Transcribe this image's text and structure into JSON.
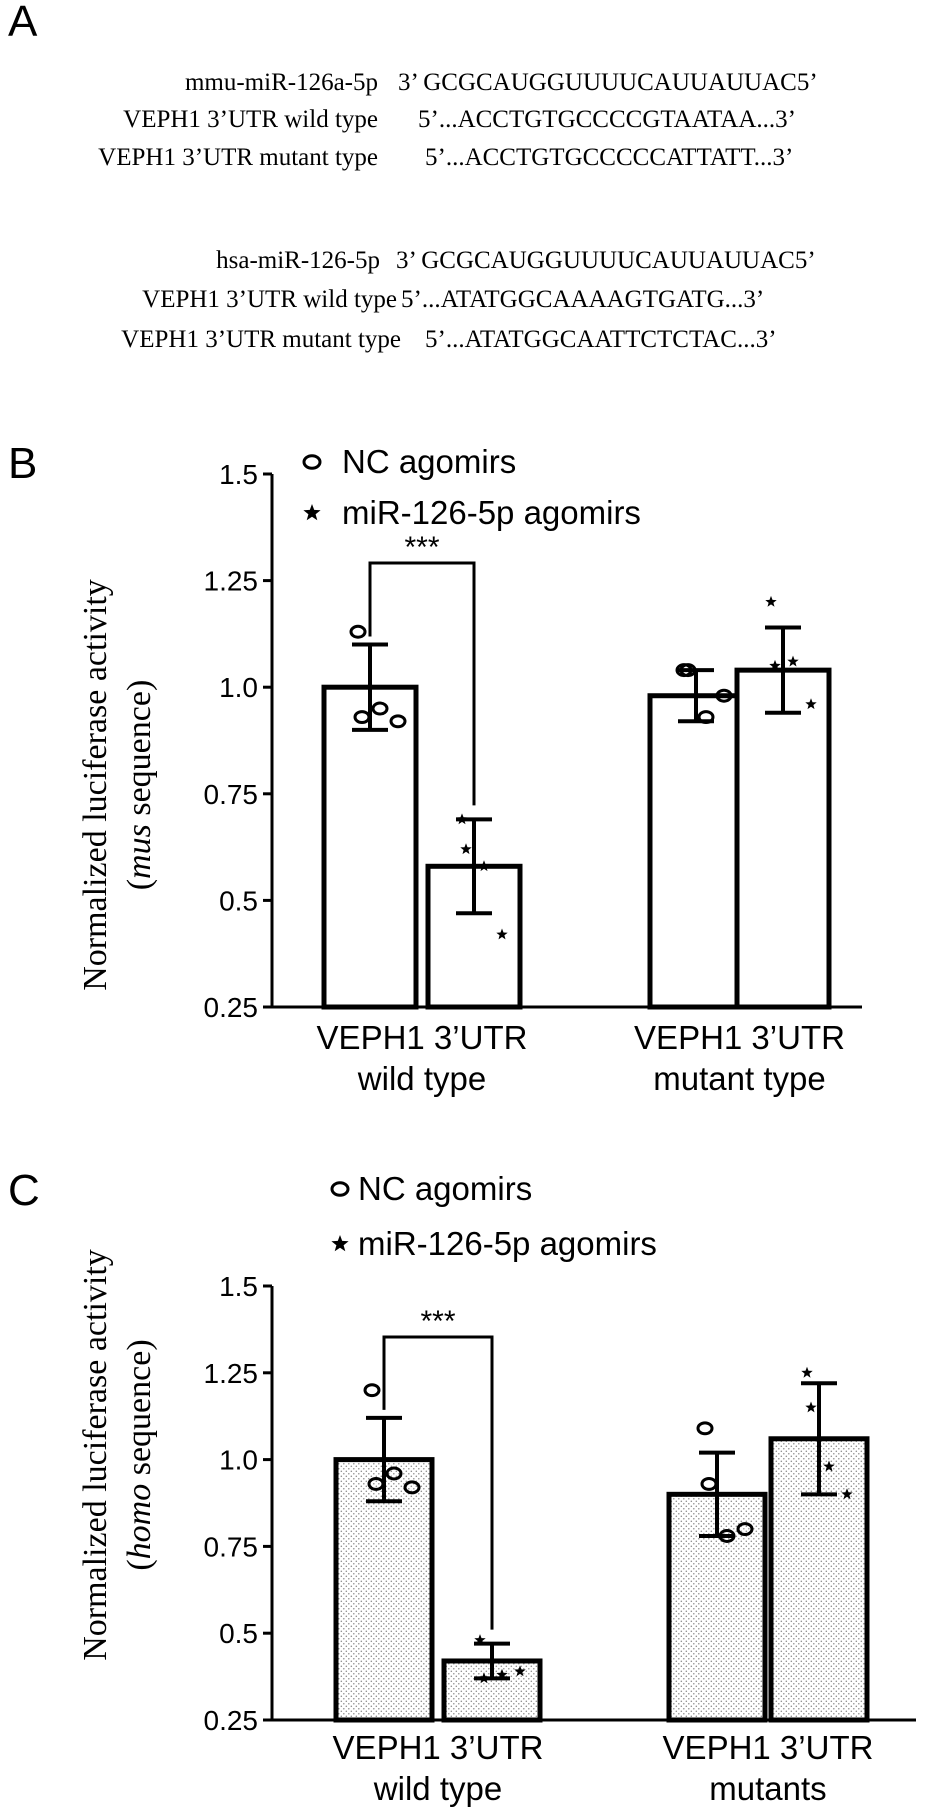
{
  "figure": {
    "panel_a": {
      "letter": "A",
      "groups": [
        {
          "rows": [
            {
              "label": "mmu-miR-126a-5p",
              "seq": "3’ GCGCAUGGUUUUCAUUAUUAC5’"
            },
            {
              "label": "VEPH1 3’UTR wild type",
              "seq": "5’...ACCTGTGCCCCGTAATAA...3’"
            },
            {
              "label": "VEPH1 3’UTR mutant type",
              "seq": "5’...ACCTGTGCCCCCATTATT...3’"
            }
          ]
        },
        {
          "rows": [
            {
              "label": "hsa-miR-126-5p",
              "seq": "3’ GCGCAUGGUUUUCAUUAUUAC5’"
            },
            {
              "label": "VEPH1 3’UTR wild type",
              "seq": "5’...ATATGGCAAAAGTGATG...3’"
            },
            {
              "label": "VEPH1 3’UTR mutant type",
              "seq": "5’...ATATGGCAATTCTCTAC...3’"
            }
          ]
        }
      ]
    }
  },
  "chart_data": [
    {
      "panel": "B",
      "type": "bar",
      "ylabel_line1": "Normalized luciferase activity",
      "ylabel_line2_pre": "(",
      "ylabel_line2_italic": "mus",
      "ylabel_line2_post": " sequence)",
      "ylim": [
        0.25,
        1.5
      ],
      "yticks": [
        "0.25",
        "0.5",
        "0.75",
        "1.0",
        "1.25",
        "1.5"
      ],
      "ytick_values": [
        0.25,
        0.5,
        0.75,
        1.0,
        1.25,
        1.5
      ],
      "fill": "plain",
      "categories": [
        {
          "line1": "VEPH1 3’UTR",
          "line2": "wild type"
        },
        {
          "line1": "VEPH1 3’UTR",
          "line2": "mutant type"
        }
      ],
      "legend": [
        {
          "marker": "circle",
          "label": "NC agomirs"
        },
        {
          "marker": "star",
          "label": "miR-126-5p agomirs"
        }
      ],
      "series": [
        {
          "name": "NC agomirs",
          "marker": "circle",
          "values": [
            1.0,
            0.98
          ],
          "errors": [
            0.1,
            0.06
          ],
          "points": [
            [
              1.13,
              0.93,
              0.95,
              0.92
            ],
            [
              1.04,
              1.04,
              0.93,
              0.98
            ]
          ]
        },
        {
          "name": "miR-126-5p agomirs",
          "marker": "star",
          "values": [
            0.58,
            1.04
          ],
          "errors": [
            0.11,
            0.1
          ],
          "points": [
            [
              0.69,
              0.62,
              0.58,
              0.42
            ],
            [
              1.2,
              1.05,
              1.06,
              0.96
            ]
          ]
        }
      ],
      "significance": [
        {
          "category": 0,
          "label": "***"
        }
      ]
    },
    {
      "panel": "C",
      "type": "bar",
      "ylabel_line1": "Normalized luciferase activity",
      "ylabel_line2_pre": "(",
      "ylabel_line2_italic": "homo",
      "ylabel_line2_post": " sequence)",
      "ylim": [
        0.25,
        1.5
      ],
      "yticks": [
        "0.25",
        "0.5",
        "0.75",
        "1.0",
        "1.25",
        "1.5"
      ],
      "ytick_values": [
        0.25,
        0.5,
        0.75,
        1.0,
        1.25,
        1.5
      ],
      "fill": "dotted",
      "categories": [
        {
          "line1": "VEPH1 3’UTR",
          "line2": "wild type"
        },
        {
          "line1": "VEPH1 3’UTR",
          "line2": "mutants"
        }
      ],
      "legend": [
        {
          "marker": "circle",
          "label": "NC agomirs"
        },
        {
          "marker": "star",
          "label": "miR-126-5p agomirs"
        }
      ],
      "series": [
        {
          "name": "NC agomirs",
          "marker": "circle",
          "values": [
            1.0,
            0.9
          ],
          "errors": [
            0.12,
            0.12
          ],
          "points": [
            [
              1.2,
              0.93,
              0.96,
              0.92
            ],
            [
              1.09,
              0.93,
              0.78,
              0.8
            ]
          ]
        },
        {
          "name": "miR-126-5p agomirs",
          "marker": "star",
          "values": [
            0.42,
            1.06
          ],
          "errors": [
            0.05,
            0.16
          ],
          "points": [
            [
              0.48,
              0.37,
              0.38,
              0.39
            ],
            [
              1.25,
              1.15,
              0.98,
              0.9
            ]
          ]
        }
      ],
      "significance": [
        {
          "category": 0,
          "label": "***"
        }
      ]
    }
  ]
}
